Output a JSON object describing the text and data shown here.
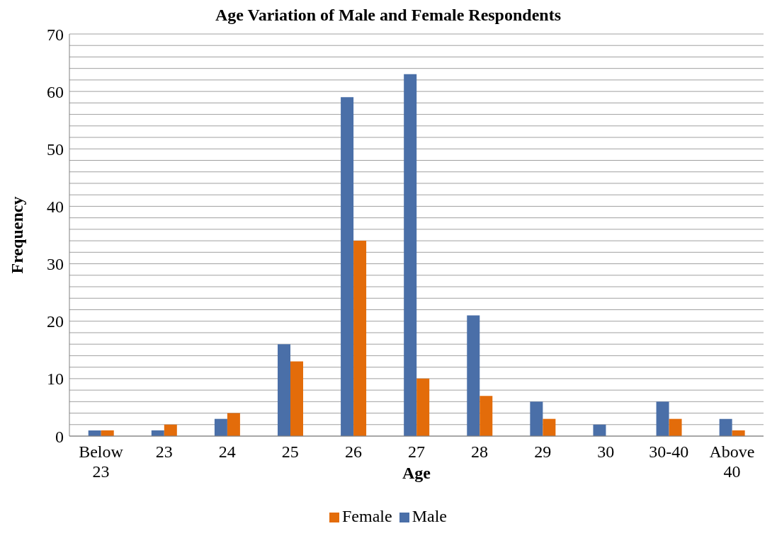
{
  "chart_data": {
    "type": "bar",
    "title": "Age Variation of Male and Female Respondents",
    "xlabel": "Age",
    "ylabel": "Frequency",
    "categories": [
      "Below 23",
      "23",
      "24",
      "25",
      "26",
      "27",
      "28",
      "29",
      "30",
      "30-40",
      "Above 40"
    ],
    "series": [
      {
        "name": "Male",
        "color": "#4a6fa8",
        "values": [
          1,
          1,
          3,
          16,
          59,
          63,
          21,
          6,
          2,
          6,
          3
        ]
      },
      {
        "name": "Female",
        "color": "#e36c0a",
        "values": [
          1,
          2,
          4,
          13,
          34,
          10,
          7,
          3,
          0,
          3,
          1
        ]
      }
    ],
    "ylim": [
      0,
      70
    ],
    "yticks": [
      0,
      {
        "value": 2,
        "label": null
      },
      {
        "value": 4,
        "label": null
      },
      {
        "value": 6,
        "label": null
      },
      {
        "value": 8,
        "label": null
      },
      10,
      {
        "value": 12,
        "label": null
      },
      {
        "value": 14,
        "label": null
      },
      {
        "value": 16,
        "label": null
      },
      {
        "value": 18,
        "label": null
      },
      20,
      {
        "value": 22,
        "label": null
      },
      {
        "value": 24,
        "label": null
      },
      {
        "value": 26,
        "label": null
      },
      {
        "value": 28,
        "label": null
      },
      30,
      {
        "value": 32,
        "label": null
      },
      {
        "value": 34,
        "label": null
      },
      {
        "value": 36,
        "label": null
      },
      {
        "value": 38,
        "label": null
      },
      40,
      {
        "value": 42,
        "label": null
      },
      {
        "value": 44,
        "label": null
      },
      {
        "value": 46,
        "label": null
      },
      {
        "value": 48,
        "label": null
      },
      50,
      {
        "value": 52,
        "label": null
      },
      {
        "value": 54,
        "label": null
      },
      {
        "value": 56,
        "label": null
      },
      {
        "value": 58,
        "label": null
      },
      60,
      {
        "value": 62,
        "label": null
      },
      {
        "value": 64,
        "label": null
      },
      {
        "value": 66,
        "label": null
      },
      {
        "value": 68,
        "label": null
      },
      70
    ],
    "grid": "y",
    "legend": "bottom"
  }
}
